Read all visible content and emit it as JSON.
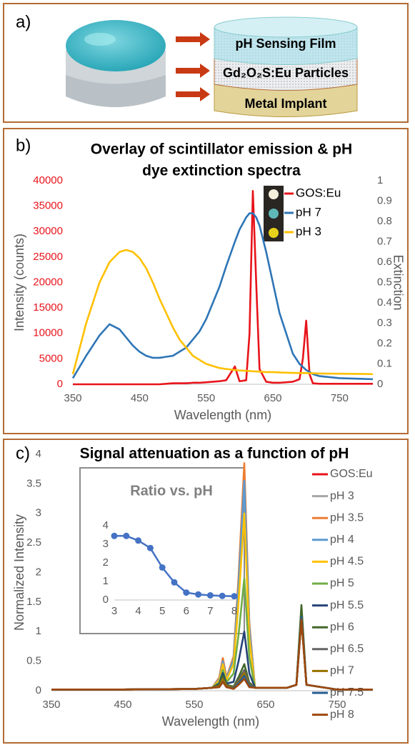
{
  "panel_a": {
    "label": "a)",
    "layers": [
      "pH Sensing Film",
      "Gd₂O₂S:Eu Particles",
      "Metal Implant"
    ]
  },
  "chart_data": [
    {
      "type": "line",
      "panel_label": "b)",
      "title": [
        "Overlay of scintillator emission & pH",
        "dye extinction spectra"
      ],
      "xlabel": "Wavelength (nm)",
      "ylabel": "Intensity (counts)",
      "y2label": "Extinction",
      "xlim": [
        350,
        800
      ],
      "xticks": [
        350,
        450,
        550,
        650,
        750
      ],
      "ylim": [
        0,
        40000
      ],
      "yticks": [
        0,
        5000,
        10000,
        15000,
        20000,
        25000,
        30000,
        35000,
        40000
      ],
      "ytick_color": "#e8141b",
      "y2lim": [
        0,
        1
      ],
      "y2ticks": [
        0,
        0.1,
        0.2,
        0.3,
        0.4,
        0.5,
        0.6,
        0.7,
        0.8,
        0.9,
        1
      ],
      "legend": "upper right",
      "x": [
        350,
        370,
        390,
        405,
        420,
        430,
        440,
        450,
        460,
        470,
        480,
        490,
        500,
        510,
        520,
        530,
        540,
        550,
        560,
        570,
        580,
        593,
        600,
        610,
        615,
        620,
        625,
        630,
        640,
        650,
        660,
        680,
        690,
        695,
        700,
        705,
        710,
        720,
        750,
        800
      ],
      "series": [
        {
          "name": "GOS:Eu",
          "color": "#e8141b",
          "values": [
            0,
            0,
            0,
            0,
            0,
            0,
            0,
            0,
            0,
            0,
            0,
            100,
            200,
            200,
            200,
            300,
            300,
            400,
            500,
            600,
            800,
            3500,
            600,
            800,
            10000,
            38000,
            20000,
            3000,
            500,
            300,
            300,
            500,
            1000,
            5000,
            12500,
            2000,
            200,
            100,
            100,
            100
          ]
        },
        {
          "name": "pH 7",
          "color": "#2e75b6",
          "axis": "y2",
          "values": [
            0.03,
            0.14,
            0.24,
            0.295,
            0.27,
            0.23,
            0.19,
            0.16,
            0.14,
            0.13,
            0.13,
            0.135,
            0.14,
            0.16,
            0.18,
            0.22,
            0.26,
            0.32,
            0.4,
            0.48,
            0.58,
            0.7,
            0.76,
            0.82,
            0.84,
            0.84,
            0.82,
            0.78,
            0.65,
            0.5,
            0.35,
            0.15,
            0.1,
            0.085,
            0.07,
            0.06,
            0.05,
            0.04,
            0.03,
            0.025
          ]
        },
        {
          "name": "pH 3",
          "color": "#ffc000",
          "axis": "y2",
          "values": [
            0.05,
            0.3,
            0.5,
            0.6,
            0.65,
            0.66,
            0.65,
            0.62,
            0.57,
            0.5,
            0.42,
            0.35,
            0.28,
            0.22,
            0.18,
            0.14,
            0.12,
            0.1,
            0.09,
            0.08,
            0.075,
            0.07,
            0.068,
            0.066,
            0.065,
            0.064,
            0.063,
            0.062,
            0.06,
            0.06,
            0.058,
            0.056,
            0.055,
            0.055,
            0.055,
            0.054,
            0.054,
            0.053,
            0.052,
            0.05
          ]
        }
      ]
    },
    {
      "type": "line",
      "panel_label": "c)",
      "title": "Signal attenuation as a function of pH",
      "xlabel": "Wavelength (nm)",
      "ylabel": "Normalized Intensity",
      "xlim": [
        350,
        800
      ],
      "xticks": [
        350,
        450,
        550,
        650,
        750
      ],
      "ylim": [
        0,
        4
      ],
      "yticks": [
        0,
        0.5,
        1,
        1.5,
        2,
        2.5,
        3,
        3.5,
        4
      ],
      "legend": "right",
      "x": [
        350,
        450,
        550,
        575,
        585,
        590,
        595,
        605,
        612,
        620,
        627,
        635,
        680,
        693,
        700,
        707,
        750,
        800
      ],
      "series": [
        {
          "name": "GOS:Eu",
          "color": "#e8141b",
          "values": [
            0.02,
            0.02,
            0.03,
            0.05,
            0.22,
            0.55,
            0.22,
            0.56,
            1.85,
            3.7,
            1.11,
            0.05,
            0.05,
            0.1,
            1.25,
            0.1,
            0.02,
            0.02
          ]
        },
        {
          "name": "pH 3",
          "color": "#a5a5a5",
          "values": [
            0.02,
            0.02,
            0.03,
            0.05,
            0.2,
            0.5,
            0.2,
            0.54,
            1.8,
            3.6,
            1.08,
            0.05,
            0.05,
            0.1,
            1.3,
            0.1,
            0.02,
            0.02
          ]
        },
        {
          "name": "pH 3.5",
          "color": "#ed7d31",
          "values": [
            0.02,
            0.02,
            0.03,
            0.05,
            0.22,
            0.55,
            0.22,
            0.58,
            1.93,
            3.85,
            1.16,
            0.05,
            0.05,
            0.1,
            1.35,
            0.1,
            0.02,
            0.02
          ]
        },
        {
          "name": "pH 4",
          "color": "#5b9bd5",
          "values": [
            0.02,
            0.02,
            0.03,
            0.05,
            0.2,
            0.5,
            0.2,
            0.53,
            1.78,
            3.55,
            1.07,
            0.05,
            0.05,
            0.1,
            1.3,
            0.1,
            0.02,
            0.02
          ]
        },
        {
          "name": "pH 4.5",
          "color": "#ffc000",
          "values": [
            0.02,
            0.02,
            0.03,
            0.05,
            0.18,
            0.45,
            0.18,
            0.45,
            1.5,
            3.0,
            0.9,
            0.05,
            0.05,
            0.1,
            1.25,
            0.1,
            0.02,
            0.02
          ]
        },
        {
          "name": "pH 5",
          "color": "#70ad47",
          "values": [
            0.02,
            0.02,
            0.03,
            0.05,
            0.14,
            0.35,
            0.14,
            0.29,
            0.95,
            1.9,
            0.57,
            0.05,
            0.05,
            0.1,
            1.4,
            0.1,
            0.02,
            0.02
          ]
        },
        {
          "name": "pH 5.5",
          "color": "#264478",
          "values": [
            0.02,
            0.02,
            0.03,
            0.05,
            0.12,
            0.3,
            0.12,
            0.15,
            0.5,
            1.0,
            0.3,
            0.05,
            0.05,
            0.1,
            1.3,
            0.1,
            0.02,
            0.02
          ]
        },
        {
          "name": "pH 6",
          "color": "#43682b",
          "values": [
            0.02,
            0.02,
            0.03,
            0.05,
            0.1,
            0.25,
            0.1,
            0.07,
            0.23,
            0.45,
            0.14,
            0.05,
            0.05,
            0.1,
            1.45,
            0.1,
            0.02,
            0.02
          ]
        },
        {
          "name": "pH 6.5",
          "color": "#636363",
          "values": [
            0.02,
            0.02,
            0.03,
            0.05,
            0.08,
            0.2,
            0.08,
            0.05,
            0.18,
            0.35,
            0.11,
            0.05,
            0.05,
            0.1,
            1.2,
            0.1,
            0.02,
            0.02
          ]
        },
        {
          "name": "pH 7",
          "color": "#997300",
          "values": [
            0.02,
            0.02,
            0.03,
            0.05,
            0.08,
            0.2,
            0.08,
            0.05,
            0.15,
            0.3,
            0.09,
            0.05,
            0.05,
            0.1,
            1.2,
            0.1,
            0.02,
            0.02
          ]
        },
        {
          "name": "pH 7.5",
          "color": "#255e91",
          "values": [
            0.02,
            0.02,
            0.03,
            0.05,
            0.06,
            0.15,
            0.06,
            0.04,
            0.13,
            0.25,
            0.08,
            0.05,
            0.05,
            0.1,
            1.25,
            0.1,
            0.02,
            0.02
          ]
        },
        {
          "name": "pH 8",
          "color": "#9e480e",
          "values": [
            0.02,
            0.02,
            0.03,
            0.05,
            0.06,
            0.15,
            0.06,
            0.03,
            0.1,
            0.2,
            0.06,
            0.05,
            0.05,
            0.1,
            1.2,
            0.1,
            0.02,
            0.02
          ]
        }
      ]
    },
    {
      "type": "line",
      "title": "Ratio vs. pH",
      "markers": true,
      "xlim": [
        3,
        8
      ],
      "xticks": [
        3,
        4,
        5,
        6,
        7,
        8
      ],
      "ylim": [
        0,
        4
      ],
      "yticks": [
        0,
        1,
        2,
        3,
        4
      ],
      "x": [
        3,
        3.5,
        4,
        4.5,
        5,
        5.5,
        6,
        6.5,
        7,
        7.5,
        8
      ],
      "series": [
        {
          "color": "#4472c4",
          "values": [
            3.45,
            3.45,
            3.2,
            2.8,
            1.75,
            0.95,
            0.4,
            0.3,
            0.25,
            0.22,
            0.2
          ]
        }
      ]
    }
  ]
}
